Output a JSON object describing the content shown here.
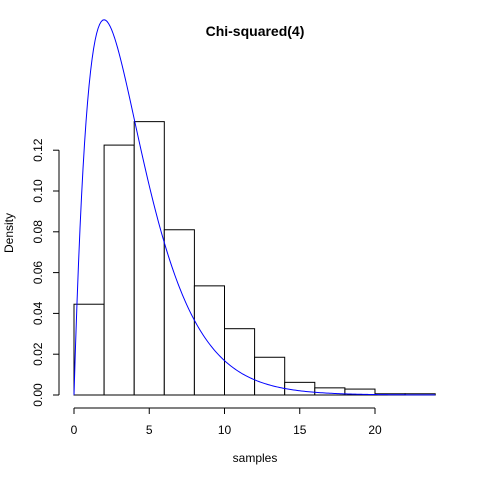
{
  "chart_data": {
    "type": "bar",
    "title": "Chi-squared(4)",
    "xlabel": "samples",
    "ylabel": "Density",
    "xlim": [
      0,
      24
    ],
    "ylim": [
      0,
      0.14
    ],
    "bins": [
      {
        "x0": 0,
        "x1": 2,
        "density": 0.0445
      },
      {
        "x0": 2,
        "x1": 4,
        "density": 0.1225
      },
      {
        "x0": 4,
        "x1": 6,
        "density": 0.134
      },
      {
        "x0": 6,
        "x1": 8,
        "density": 0.081
      },
      {
        "x0": 8,
        "x1": 10,
        "density": 0.0535
      },
      {
        "x0": 10,
        "x1": 12,
        "density": 0.0325
      },
      {
        "x0": 12,
        "x1": 14,
        "density": 0.0185
      },
      {
        "x0": 14,
        "x1": 16,
        "density": 0.0062
      },
      {
        "x0": 16,
        "x1": 18,
        "density": 0.0035
      },
      {
        "x0": 18,
        "x1": 20,
        "density": 0.0029
      },
      {
        "x0": 20,
        "x1": 22,
        "density": 0.0006
      },
      {
        "x0": 22,
        "x1": 24,
        "density": 0.0006
      }
    ],
    "curve": {
      "distribution": "chi-squared",
      "df": 4,
      "color": "#0000ff",
      "x_range": [
        0,
        24
      ]
    },
    "x_ticks": [
      0,
      5,
      10,
      15,
      20
    ],
    "x_tick_labels": [
      "0",
      "5",
      "10",
      "15",
      "20"
    ],
    "y_ticks": [
      0.0,
      0.02,
      0.04,
      0.06,
      0.08,
      0.1,
      0.12
    ],
    "y_tick_labels": [
      "0.00",
      "0.02",
      "0.04",
      "0.06",
      "0.08",
      "0.10",
      "0.12"
    ],
    "grid": false,
    "bar_fill": "#ffffff",
    "bar_stroke": "#000000"
  }
}
